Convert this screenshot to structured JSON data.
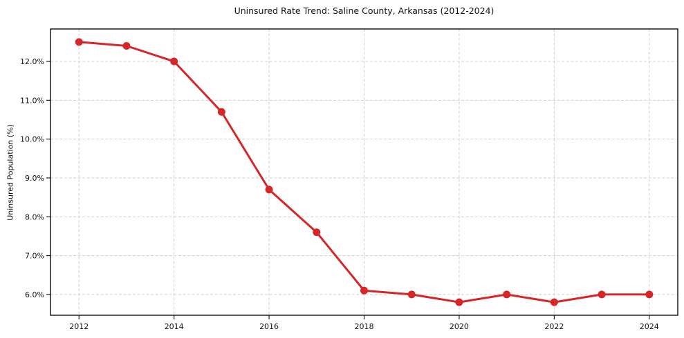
{
  "title": "Uninsured Rate Trend: Saline County, Arkansas (2012-2024)",
  "chart_data": {
    "type": "line",
    "title": "Uninsured Rate Trend: Saline County, Arkansas (2012-2024)",
    "xlabel": "",
    "ylabel": "Uninsured Population (%)",
    "x": [
      2012,
      2013,
      2014,
      2015,
      2016,
      2017,
      2018,
      2019,
      2020,
      2021,
      2022,
      2023,
      2024
    ],
    "series": [
      {
        "name": "Uninsured Population (%)",
        "values": [
          12.5,
          12.4,
          12.0,
          10.7,
          8.7,
          7.6,
          6.1,
          6.0,
          5.8,
          6.0,
          5.8,
          6.0,
          6.0
        ]
      }
    ],
    "xlim": [
      2011.4,
      2024.6
    ],
    "ylim": [
      5.465,
      12.835
    ],
    "x_ticks": [
      2012,
      2014,
      2016,
      2018,
      2020,
      2022,
      2024
    ],
    "x_tick_labels": [
      "2012",
      "2014",
      "2016",
      "2018",
      "2020",
      "2022",
      "2024"
    ],
    "y_ticks": [
      6,
      7,
      8,
      9,
      10,
      11,
      12
    ],
    "y_tick_labels": [
      "6.0%",
      "7.0%",
      "8.0%",
      "9.0%",
      "10.0%",
      "11.0%",
      "12.0%"
    ],
    "grid": true,
    "legend": "none",
    "line_color": "#d62728",
    "grid_color": "#cfcfcf",
    "axis_color": "#1a1a1a",
    "background_color": "#ffffff",
    "line_width": 3,
    "marker_radius": 5.5
  }
}
